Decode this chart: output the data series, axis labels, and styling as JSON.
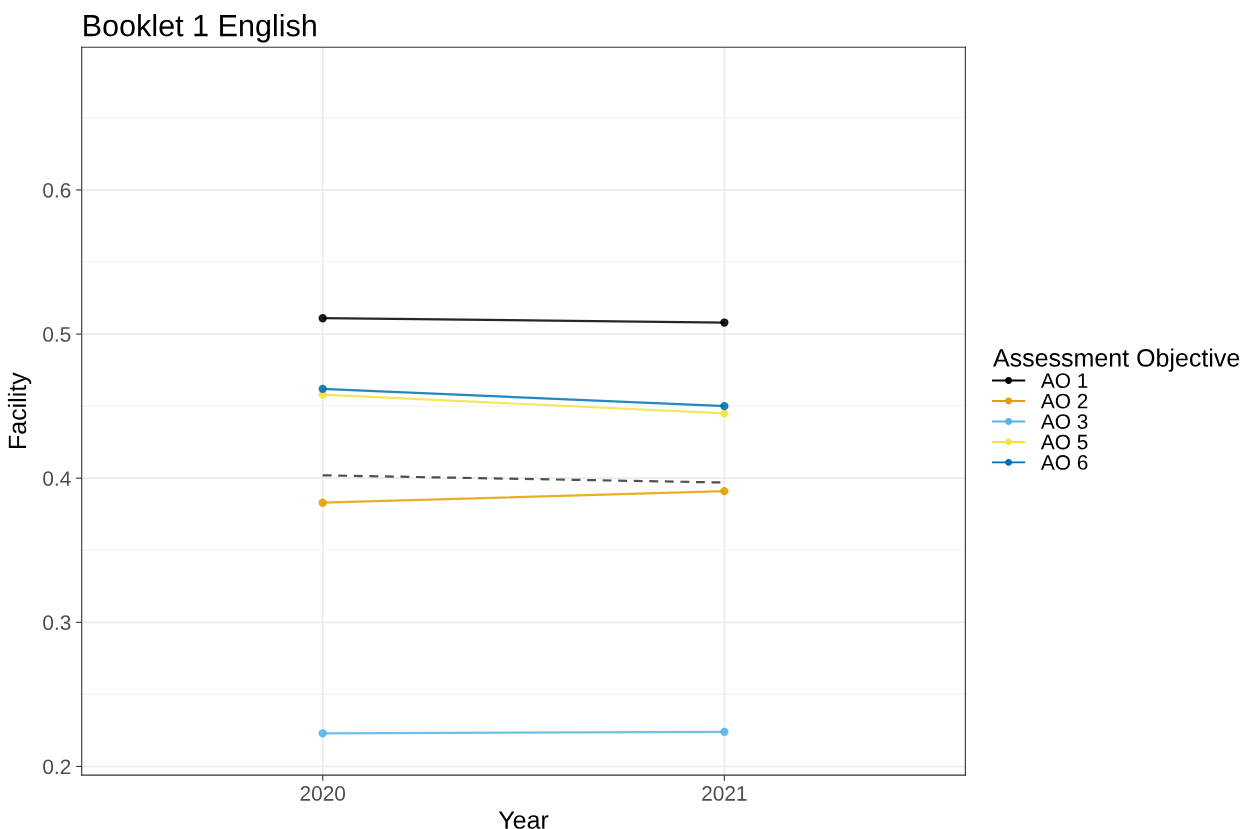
{
  "chart_data": {
    "type": "line",
    "title": "Booklet 1 English",
    "xlabel": "Year",
    "ylabel": "Facility",
    "legend_title": "Assessment Objective",
    "categories": [
      "2020",
      "2021"
    ],
    "series": [
      {
        "name": "AO 1",
        "color": "#000000",
        "values": [
          0.511,
          0.508
        ]
      },
      {
        "name": "AO 2",
        "color": "#e69f00",
        "values": [
          0.383,
          0.391
        ]
      },
      {
        "name": "AO 3",
        "color": "#56b4e9",
        "values": [
          0.223,
          0.224
        ]
      },
      {
        "name": "AO 5",
        "color": "#f0e442",
        "values": [
          0.458,
          0.445
        ]
      },
      {
        "name": "AO 6",
        "color": "#0072b2",
        "values": [
          0.462,
          0.45
        ]
      },
      {
        "color": "#333333",
        "values": [
          0.402,
          0.397
        ],
        "line_style": "dashed",
        "marker": "none"
      }
    ],
    "ylim": [
      0.194,
      0.699
    ],
    "yticks": [
      0.2,
      {
        "value": 0.25,
        "label": null
      },
      0.3,
      {
        "value": 0.35,
        "label": null
      },
      0.4,
      {
        "value": 0.45,
        "label": null
      },
      0.5,
      {
        "value": 0.55,
        "label": null
      },
      0.6,
      {
        "value": 0.65,
        "label": null
      }
    ],
    "grid": true,
    "legend": "right",
    "marker": "circle",
    "line_style": "solid"
  }
}
